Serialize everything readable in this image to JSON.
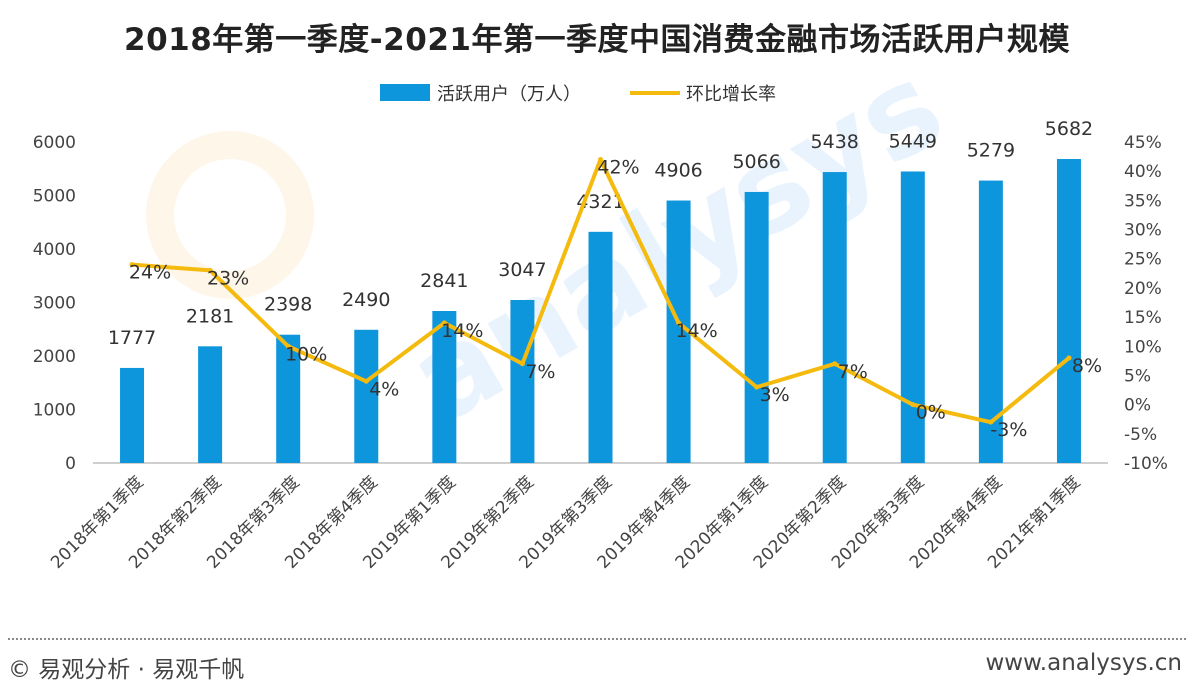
{
  "chart_data": {
    "type": "bar",
    "title": "2018年第一季度-2021年第一季度中国消费金融市场活跃用户规模",
    "categories": [
      "2018年第1季度",
      "2018年第2季度",
      "2018年第3季度",
      "2018年第4季度",
      "2019年第1季度",
      "2019年第2季度",
      "2019年第3季度",
      "2019年第4季度",
      "2020年第1季度",
      "2020年第2季度",
      "2020年第3季度",
      "2020年第4季度",
      "2021年第1季度"
    ],
    "series": [
      {
        "name": "活跃用户（万人）",
        "type": "bar",
        "axis": "left",
        "color": "#0E96DD",
        "values": [
          1777,
          2181,
          2398,
          2490,
          2841,
          3047,
          4321,
          4906,
          5066,
          5438,
          5449,
          5279,
          5682
        ]
      },
      {
        "name": "环比增长率",
        "type": "line",
        "axis": "right",
        "color": "#F5BA0E",
        "values": [
          24,
          23,
          10,
          4,
          14,
          7,
          42,
          14,
          3,
          7,
          0,
          -3,
          8
        ],
        "value_labels": [
          "24%",
          "23%",
          "10%",
          "4%",
          "14%",
          "7%",
          "42%",
          "14%",
          "3%",
          "7%",
          "0%",
          "-3%",
          "8%"
        ]
      }
    ],
    "ylim_left": [
      0,
      6000
    ],
    "yticks_left": [
      0,
      1000,
      2000,
      3000,
      4000,
      5000,
      6000
    ],
    "ylim_right": [
      -10,
      45
    ],
    "yticks_right_labels": [
      "-10%",
      "-5%",
      "0%",
      "5%",
      "10%",
      "15%",
      "20%",
      "25%",
      "30%",
      "35%",
      "40%",
      "45%"
    ],
    "legend_position": "top",
    "grid": false
  },
  "footer": {
    "left": "© 易观分析 · 易观千帆",
    "right": "www.analysys.cn"
  }
}
